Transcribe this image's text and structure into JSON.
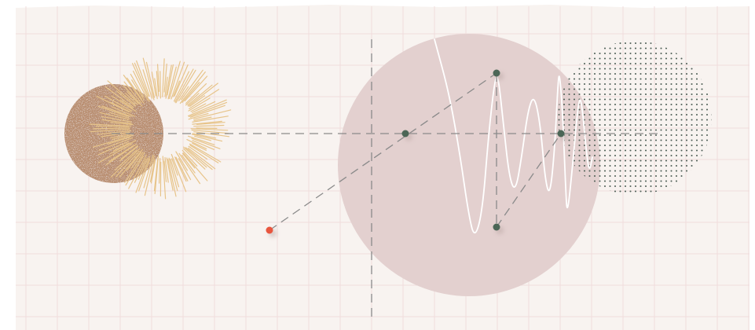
{
  "artwork": {
    "colors": {
      "paper": "#f8f3f0",
      "grid_line": "#f0dcdc",
      "moon_brown": "#b98e6f",
      "sun_rays": "#e7c48a",
      "large_circle": "#e3d0cf",
      "dots": "#4f5f56",
      "dashes": "#8a8a8a",
      "wave": "#ffffff",
      "node": "#4b6656",
      "accent_node": "#e8563f"
    },
    "icons": [
      "moon-icon",
      "sun-rays-icon",
      "dot-pattern-icon",
      "wave-icon"
    ]
  }
}
